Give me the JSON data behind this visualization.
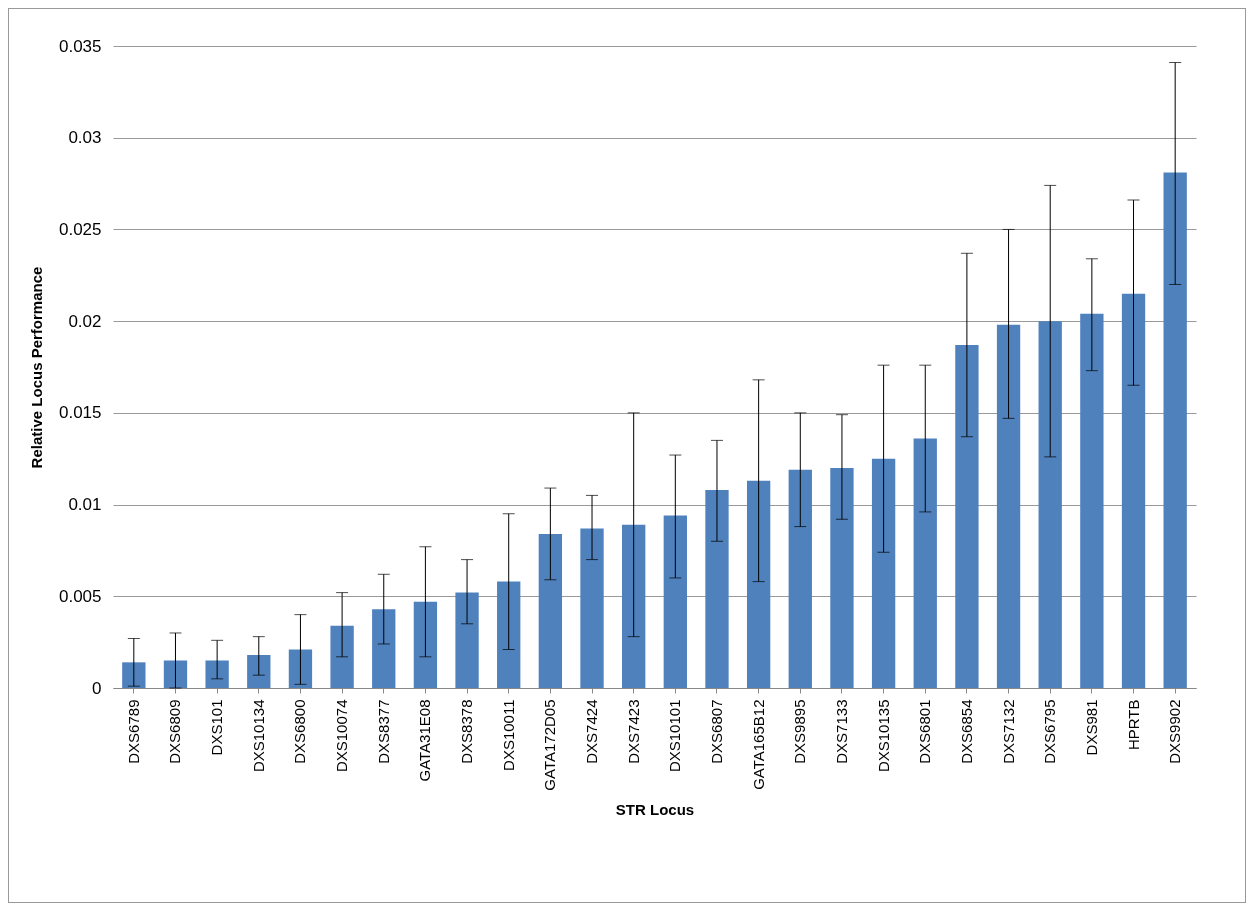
{
  "chart_data": {
    "type": "bar",
    "xlabel": "STR Locus",
    "ylabel": "Relative Locus Performance",
    "categories": [
      "DXS6789",
      "DXS6809",
      "DXS101",
      "DXS10134",
      "DXS6800",
      "DXS10074",
      "DXS8377",
      "GATA31E08",
      "DXS8378",
      "DXS10011",
      "GATA172D05",
      "DXS7424",
      "DXS7423",
      "DXS10101",
      "DXS6807",
      "GATA165B12",
      "DXS9895",
      "DXS7133",
      "DXS10135",
      "DXS6801",
      "DXS6854",
      "DXS7132",
      "DXS6795",
      "DXS981",
      "HPRTB",
      "DXS9902"
    ],
    "values": [
      0.0014,
      0.0015,
      0.0015,
      0.0018,
      0.0021,
      0.0034,
      0.0043,
      0.0047,
      0.0052,
      0.0058,
      0.0084,
      0.0087,
      0.0089,
      0.0094,
      0.0108,
      0.0113,
      0.0119,
      0.012,
      0.0125,
      0.0136,
      0.0187,
      0.0198,
      0.02,
      0.0204,
      0.0215,
      0.0281
    ],
    "errors": [
      [
        0.0001,
        0.0027
      ],
      [
        0.0,
        0.003
      ],
      [
        0.0005,
        0.0026
      ],
      [
        0.0007,
        0.0028
      ],
      [
        0.0002,
        0.004
      ],
      [
        0.0017,
        0.0052
      ],
      [
        0.0024,
        0.0062
      ],
      [
        0.0017,
        0.0077
      ],
      [
        0.0035,
        0.007
      ],
      [
        0.0021,
        0.0095
      ],
      [
        0.0059,
        0.0109
      ],
      [
        0.007,
        0.0105
      ],
      [
        0.0028,
        0.015
      ],
      [
        0.006,
        0.0127
      ],
      [
        0.008,
        0.0135
      ],
      [
        0.0058,
        0.0168
      ],
      [
        0.0088,
        0.015
      ],
      [
        0.0092,
        0.0149
      ],
      [
        0.0074,
        0.0176
      ],
      [
        0.0096,
        0.0176
      ],
      [
        0.0137,
        0.0237
      ],
      [
        0.0147,
        0.025
      ],
      [
        0.0126,
        0.0274
      ],
      [
        0.0173,
        0.0234
      ],
      [
        0.0165,
        0.0266
      ],
      [
        0.022,
        0.0341
      ]
    ],
    "color": "#4f81bd",
    "ylim": [
      0,
      0.035
    ],
    "yticks": [
      0,
      0.005,
      0.01,
      0.015,
      0.02,
      0.025,
      0.03,
      0.035
    ],
    "grid": "y"
  }
}
